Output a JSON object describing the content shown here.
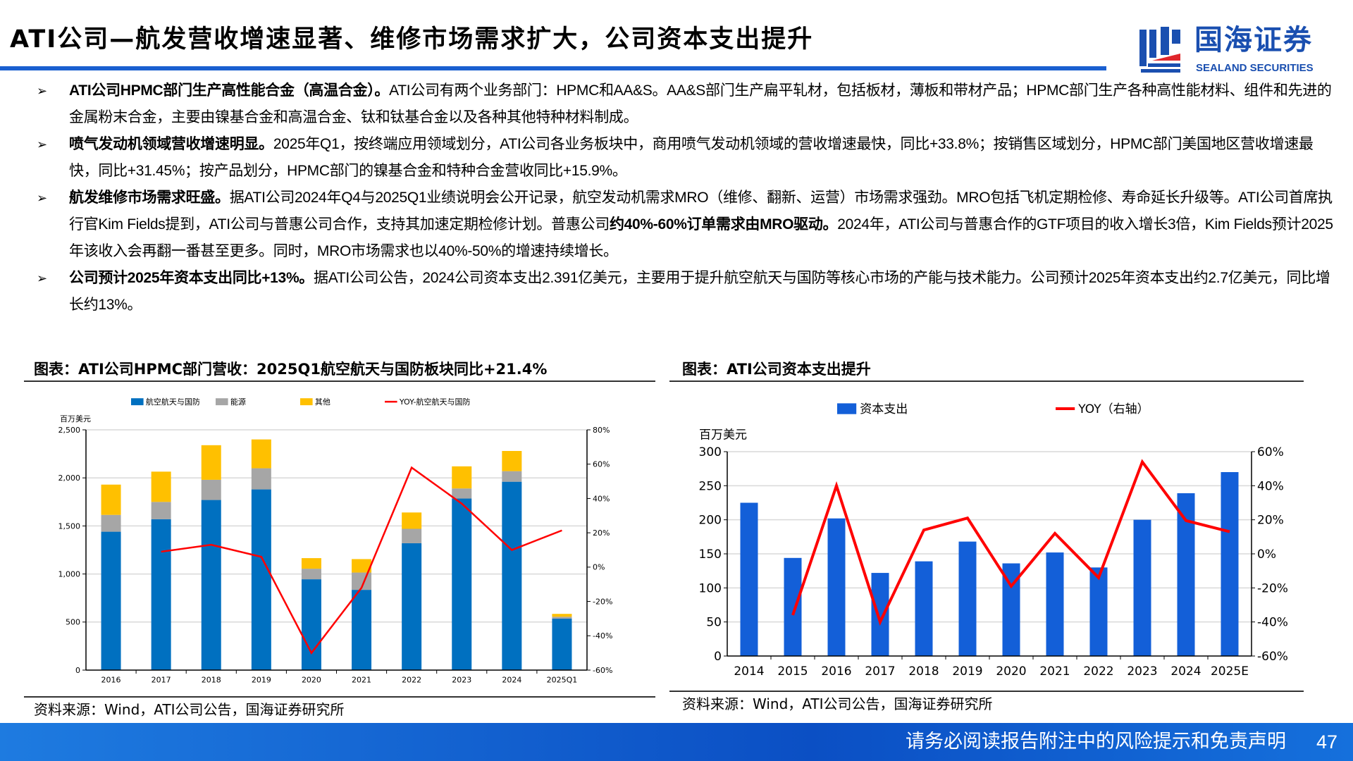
{
  "header": {
    "title": "ATI公司—航发营收增速显著、维修市场需求扩大，公司资本支出提升",
    "logo_cn": "国海证券",
    "logo_en": "SEALAND SECURITIES"
  },
  "bullets": [
    {
      "bold": "ATI公司HPMC部门生产高性能合金（高温合金）。",
      "text": "ATI公司有两个业务部门：HPMC和AA&S。AA&S部门生产扁平轧材，包括板材，薄板和带材产品；HPMC部门生产各种高性能材料、组件和先进的金属粉末合金，主要由镍基合金和高温合金、钛和钛基合金以及各种其他特种材料制成。"
    },
    {
      "bold": "喷气发动机领域营收增速明显。",
      "text": "2025年Q1，按终端应用领域划分，ATI公司各业务板块中，商用喷气发动机领域的营收增速最快，同比+33.8%；按销售区域划分，HPMC部门美国地区营收增速最快，同比+31.45%；按产品划分，HPMC部门的镍基合金和特种合金营收同比+15.9%。"
    },
    {
      "bold": "航发维修市场需求旺盛。",
      "text": "据ATI公司2024年Q4与2025Q1业绩说明会公开记录，航空发动机需求MRO（维修、翻新、运营）市场需求强劲。MRO包括飞机定期检修、寿命延长升级等。ATI公司首席执行官Kim Fields提到，ATI公司与普惠公司合作，支持其加速定期检修计划。普惠公司",
      "bold2": "约40%-60%订单需求由MRO驱动。",
      "text2": "2024年，ATI公司与普惠合作的GTF项目的收入增长3倍，Kim Fields预计2025年该收入会再翻一番甚至更多。同时，MRO市场需求也以40%-50%的增速持续增长。"
    },
    {
      "bold": "公司预计2025年资本支出同比+13%。",
      "text": "据ATI公司公告，2024公司资本支出2.391亿美元，主要用于提升航空航天与国防等核心市场的产能与技术能力。公司预计2025年资本支出约2.7亿美元，同比增长约13%。"
    }
  ],
  "left_chart": {
    "title": "图表：ATI公司HPMC部门营收：2025Q1航空航天与国防板块同比+21.4%",
    "source": "资料来源：Wind，ATI公司公告，国海证券研究所"
  },
  "right_chart": {
    "title": "图表：ATI公司资本支出提升",
    "source": "资料来源：Wind，ATI公司公告，国海证券研究所"
  },
  "footer": {
    "disclaimer": "请务必阅读报告附注中的风险提示和免责声明",
    "page": "47"
  },
  "chart_data": [
    {
      "type": "bar",
      "stacked": true,
      "unit_label": "百万美元",
      "categories": [
        "2016",
        "2017",
        "2018",
        "2019",
        "2020",
        "2021",
        "2022",
        "2023",
        "2024",
        "2025Q1"
      ],
      "series": [
        {
          "name": "航空航天与国防",
          "color": "#0070c0",
          "values": [
            1440,
            1570,
            1770,
            1880,
            945,
            835,
            1320,
            1785,
            1960,
            535
          ]
        },
        {
          "name": "能源",
          "color": "#a6a6a6",
          "values": [
            175,
            180,
            210,
            220,
            110,
            180,
            150,
            105,
            110,
            20
          ]
        },
        {
          "name": "其他",
          "color": "#ffc000",
          "values": [
            315,
            315,
            360,
            300,
            110,
            140,
            170,
            230,
            210,
            30
          ]
        }
      ],
      "line": {
        "name": "YOY-航空航天与国防",
        "color": "#ff0000",
        "axis": "right",
        "values": [
          null,
          9,
          13,
          6,
          -50,
          -12,
          58,
          37,
          10,
          21.4
        ]
      },
      "ylim": [
        0,
        2500
      ],
      "yticks": [
        "0",
        "500",
        "1,000",
        "1,500",
        "2,000",
        "2,500"
      ],
      "y2lim": [
        -60,
        80
      ],
      "y2ticks": [
        "-60%",
        "-40%",
        "-20%",
        "0%",
        "20%",
        "40%",
        "60%",
        "80%"
      ],
      "legend": "top"
    },
    {
      "type": "bar",
      "unit_label": "百万美元",
      "categories": [
        "2014",
        "2015",
        "2016",
        "2017",
        "2018",
        "2019",
        "2020",
        "2021",
        "2022",
        "2023",
        "2024",
        "2025E"
      ],
      "series": [
        {
          "name": "资本支出",
          "color": "#135fd8",
          "values": [
            225,
            144,
            202,
            122,
            139,
            168,
            136,
            152,
            130,
            200,
            239,
            270
          ]
        }
      ],
      "line": {
        "name": "YOY（右轴）",
        "color": "#ff0000",
        "axis": "right",
        "values": [
          null,
          -36,
          40,
          -40,
          14,
          21,
          -19,
          12,
          -14,
          54,
          19.5,
          13
        ]
      },
      "ylim": [
        0,
        300
      ],
      "yticks": [
        "0",
        "50",
        "100",
        "150",
        "200",
        "250",
        "300"
      ],
      "y2lim": [
        -60,
        60
      ],
      "y2ticks": [
        "-60%",
        "-40%",
        "-20%",
        "0%",
        "20%",
        "40%",
        "60%"
      ],
      "legend": "top"
    }
  ]
}
